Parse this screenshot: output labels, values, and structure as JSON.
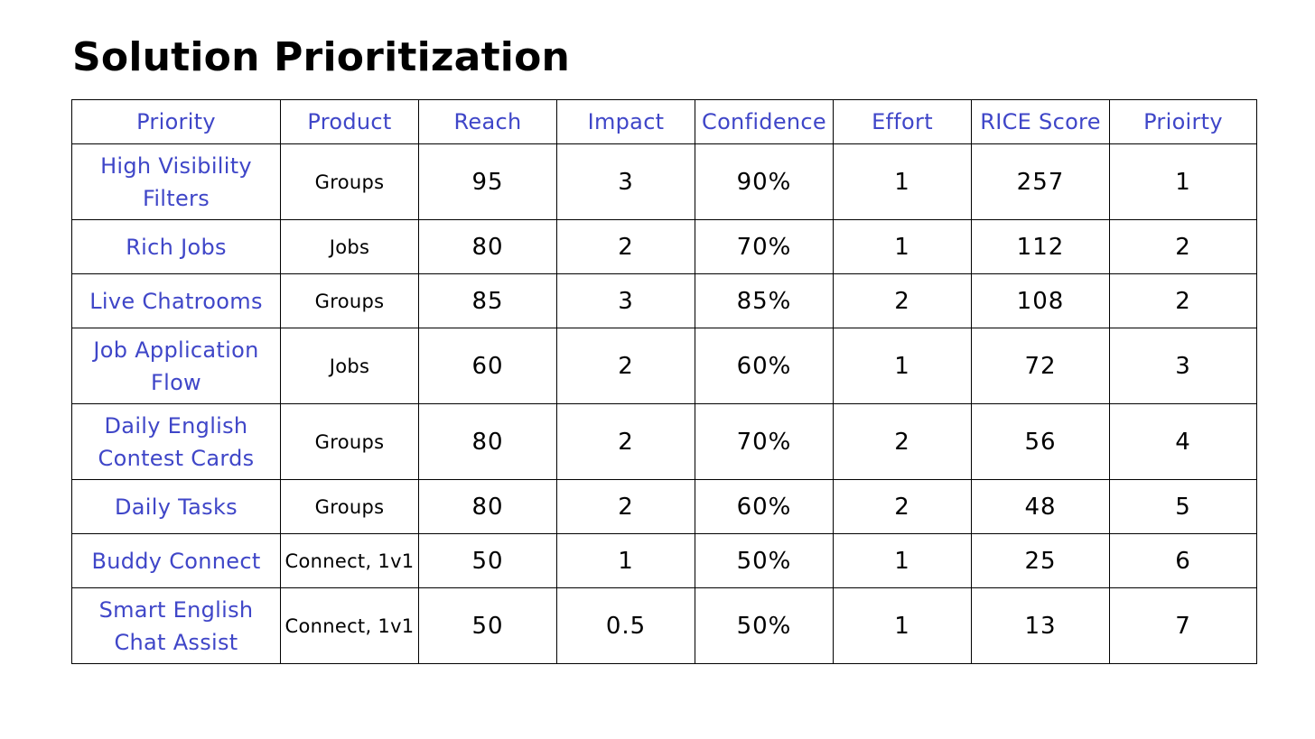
{
  "title": "Solution Prioritization",
  "table": {
    "headers": [
      "Priority",
      "Product",
      "Reach",
      "Impact",
      "Confidence",
      "Effort",
      "RICE Score",
      "Prioirty"
    ],
    "rows": [
      {
        "name": "High Visibility Filters",
        "product": "Groups",
        "reach": "95",
        "impact": "3",
        "confidence": "90%",
        "effort": "1",
        "rice": "257",
        "priority": "1"
      },
      {
        "name": "Rich Jobs",
        "product": "Jobs",
        "reach": "80",
        "impact": "2",
        "confidence": "70%",
        "effort": "1",
        "rice": "112",
        "priority": "2"
      },
      {
        "name": "Live Chatrooms",
        "product": "Groups",
        "reach": "85",
        "impact": "3",
        "confidence": "85%",
        "effort": "2",
        "rice": "108",
        "priority": "2"
      },
      {
        "name": "Job Application Flow",
        "product": "Jobs",
        "reach": "60",
        "impact": "2",
        "confidence": "60%",
        "effort": "1",
        "rice": "72",
        "priority": "3"
      },
      {
        "name": "Daily English Contest Cards",
        "product": "Groups",
        "reach": "80",
        "impact": "2",
        "confidence": "70%",
        "effort": "2",
        "rice": "56",
        "priority": "4"
      },
      {
        "name": "Daily Tasks",
        "product": "Groups",
        "reach": "80",
        "impact": "2",
        "confidence": "60%",
        "effort": "2",
        "rice": "48",
        "priority": "5"
      },
      {
        "name": "Buddy Connect",
        "product": "Connect, 1v1",
        "reach": "50",
        "impact": "1",
        "confidence": "50%",
        "effort": "1",
        "rice": "25",
        "priority": "6"
      },
      {
        "name": "Smart English Chat Assist",
        "product": "Connect, 1v1",
        "reach": "50",
        "impact": "0.5",
        "confidence": "50%",
        "effort": "1",
        "rice": "13",
        "priority": "7"
      }
    ]
  }
}
